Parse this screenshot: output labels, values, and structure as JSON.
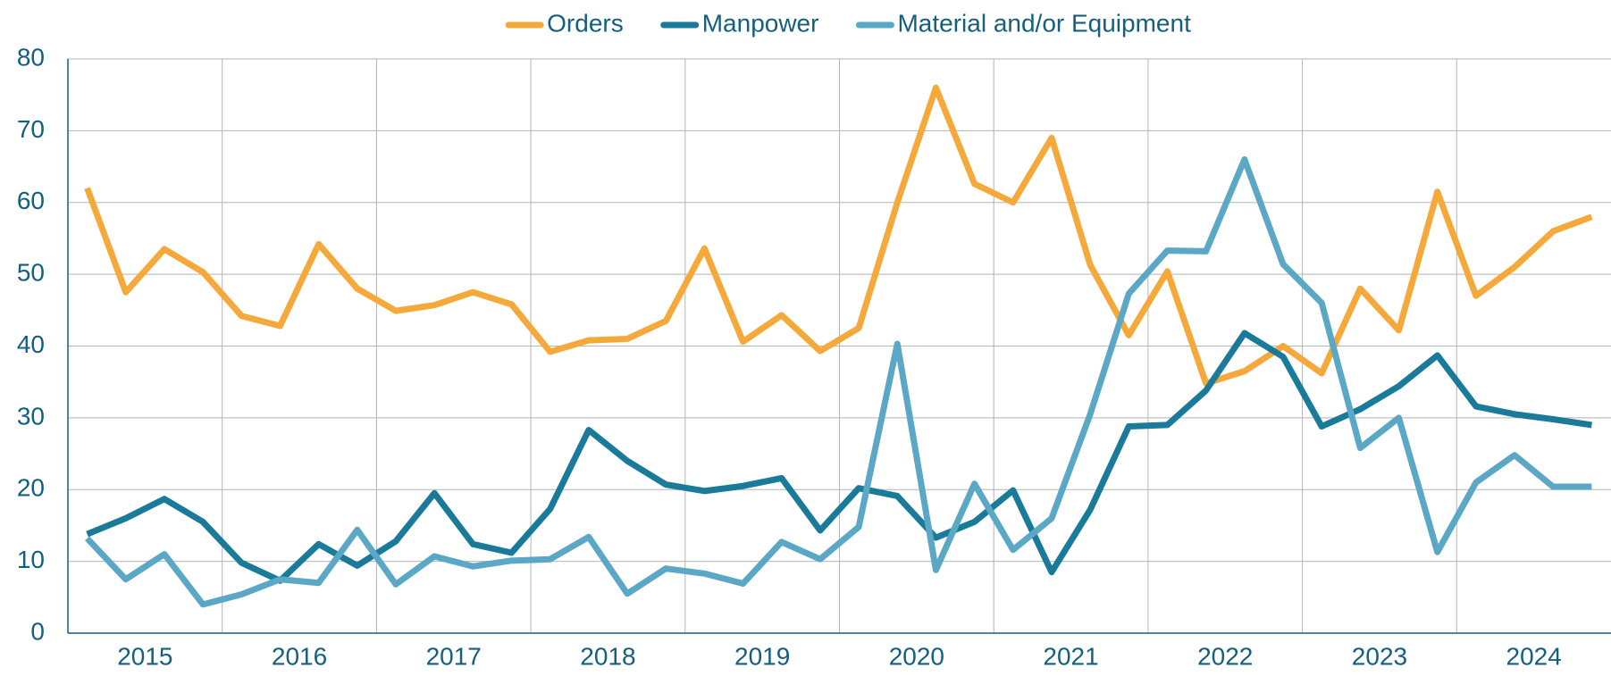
{
  "chart_data": {
    "type": "line",
    "categories": [
      "2015",
      null,
      null,
      null,
      "2016",
      null,
      null,
      null,
      "2017",
      null,
      null,
      null,
      "2018",
      null,
      null,
      null,
      "2019",
      null,
      null,
      null,
      "2020",
      null,
      null,
      null,
      "2021",
      null,
      null,
      null,
      "2022",
      null,
      null,
      null,
      "2023",
      null,
      null,
      null,
      "2024",
      null,
      null,
      null
    ],
    "series": [
      {
        "name": "Orders",
        "color": "#f5a93a",
        "values": [
          62,
          47.5,
          53.5,
          50.3,
          44.2,
          42.8,
          54.2,
          48,
          44.9,
          45.7,
          47.5,
          45.8,
          39.2,
          40.8,
          41,
          43.5,
          53.6,
          40.6,
          44.3,
          39.3,
          42.5,
          60,
          76,
          62.6,
          60,
          69,
          51.3,
          41.5,
          50.4,
          34.8,
          36.5,
          40,
          36.2,
          48,
          42.2,
          61.5,
          47,
          51,
          56,
          58
        ]
      },
      {
        "name": "Manpower",
        "color": "#1a7a99",
        "values": [
          13.8,
          16,
          18.7,
          15.5,
          9.8,
          7.3,
          12.4,
          9.4,
          12.8,
          19.5,
          12.4,
          11.2,
          17.3,
          28.3,
          24,
          20.7,
          19.8,
          20.5,
          21.6,
          14.3,
          20.2,
          19.1,
          13.3,
          15.5,
          19.9,
          8.5,
          17.2,
          28.8,
          29,
          33.8,
          41.8,
          38.5,
          28.8,
          31.2,
          34.4,
          38.7,
          31.6,
          30.5,
          29.8,
          29
        ]
      },
      {
        "name": "Material and/or Equipment",
        "color": "#5ba7c6",
        "values": [
          13.2,
          7.5,
          11,
          4,
          5.4,
          7.5,
          7,
          14.4,
          6.8,
          10.7,
          9.3,
          10.1,
          10.3,
          13.4,
          5.5,
          9,
          8.3,
          6.9,
          12.7,
          10.3,
          14.8,
          40.3,
          8.8,
          20.8,
          11.6,
          16,
          30.5,
          47.3,
          53.3,
          53.2,
          66,
          51.4,
          46,
          25.8,
          30,
          11.3,
          21,
          24.8,
          20.4,
          20.4
        ]
      }
    ],
    "ylim": [
      0,
      80
    ],
    "yticks": [
      0,
      10,
      20,
      30,
      40,
      50,
      60,
      70,
      80
    ],
    "grid": true,
    "legend": "top"
  }
}
